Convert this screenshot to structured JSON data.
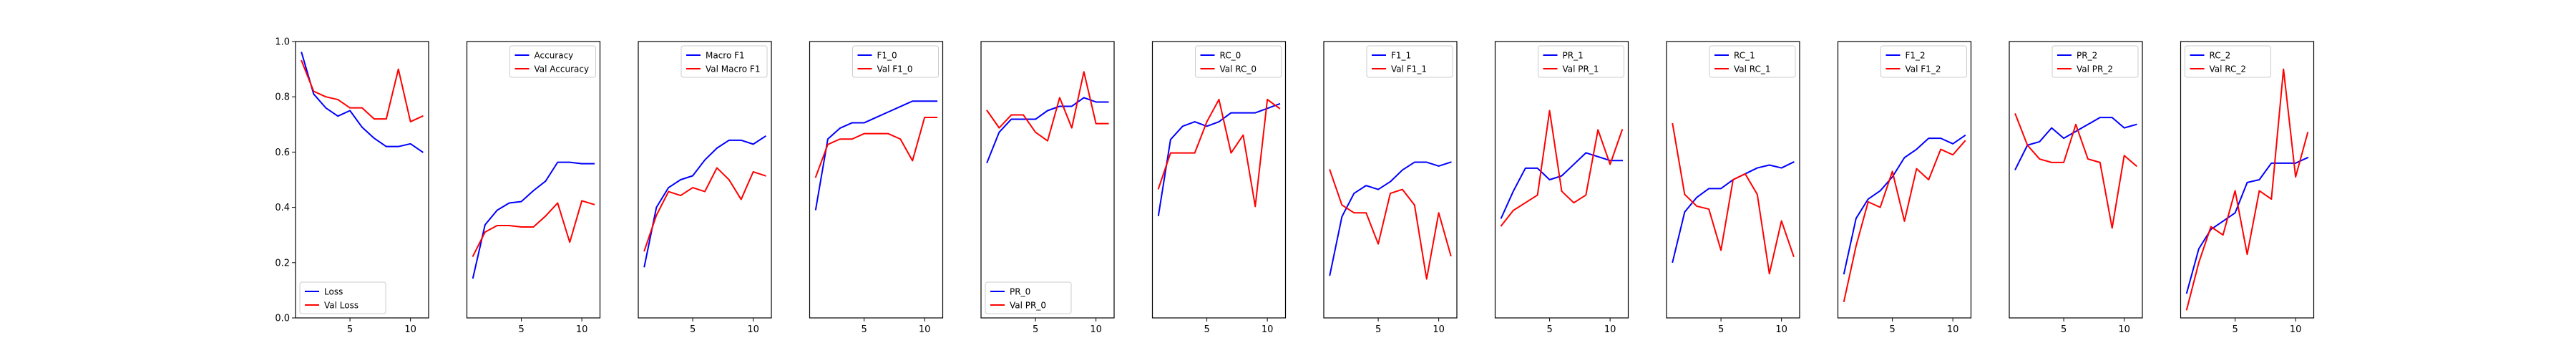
{
  "figure": {
    "colors": {
      "train": "#0000ff",
      "val": "#ff0000",
      "axis": "#000000",
      "background": "#ffffff"
    }
  },
  "chart_data": [
    {
      "type": "line",
      "x": [
        1,
        2,
        3,
        4,
        5,
        6,
        7,
        8,
        9,
        10,
        11
      ],
      "xlim": [
        0.5,
        11.5
      ],
      "ylim": [
        0.0,
        1.0
      ],
      "xticks": [
        5,
        10
      ],
      "yticks": [
        0.0,
        0.2,
        0.4,
        0.6,
        0.8,
        1.0
      ],
      "legend_position": "lower left",
      "series": [
        {
          "name": "Loss",
          "color": "#0000ff",
          "values": [
            0.96,
            0.81,
            0.76,
            0.73,
            0.75,
            0.69,
            0.65,
            0.62,
            0.62,
            0.63,
            0.6
          ]
        },
        {
          "name": "Val Loss",
          "color": "#ff0000",
          "values": [
            0.93,
            0.82,
            0.8,
            0.79,
            0.76,
            0.76,
            0.72,
            0.72,
            0.9,
            0.71,
            0.73
          ]
        }
      ]
    },
    {
      "type": "line",
      "x": [
        1,
        2,
        3,
        4,
        5,
        6,
        7,
        8,
        9,
        10,
        11
      ],
      "xlim": [
        0.5,
        11.5
      ],
      "ylim": [
        0.5,
        0.88
      ],
      "xticks": [
        5,
        10
      ],
      "yticks": [],
      "legend_position": "upper right",
      "series": [
        {
          "name": "Accuracy",
          "color": "#0000ff",
          "values": [
            0.555,
            0.628,
            0.648,
            0.658,
            0.66,
            0.675,
            0.688,
            0.714,
            0.714,
            0.712,
            0.712
          ]
        },
        {
          "name": "Val Accuracy",
          "color": "#ff0000",
          "values": [
            0.585,
            0.618,
            0.627,
            0.627,
            0.625,
            0.625,
            0.64,
            0.658,
            0.604,
            0.661,
            0.656
          ]
        }
      ]
    },
    {
      "type": "line",
      "x": [
        1,
        2,
        3,
        4,
        5,
        6,
        7,
        8,
        9,
        10,
        11
      ],
      "xlim": [
        0.5,
        11.5
      ],
      "ylim": [
        0.25,
        0.95
      ],
      "xticks": [
        5,
        10
      ],
      "yticks": [],
      "legend_position": "upper right",
      "series": [
        {
          "name": "Macro F1",
          "color": "#0000ff",
          "values": [
            0.38,
            0.53,
            0.58,
            0.6,
            0.61,
            0.65,
            0.68,
            0.7,
            0.7,
            0.69,
            0.71
          ]
        },
        {
          "name": "Val Macro F1",
          "color": "#ff0000",
          "values": [
            0.42,
            0.51,
            0.57,
            0.56,
            0.58,
            0.57,
            0.63,
            0.6,
            0.55,
            0.62,
            0.61
          ]
        }
      ]
    },
    {
      "type": "line",
      "x": [
        1,
        2,
        3,
        4,
        5,
        6,
        7,
        8,
        9,
        10,
        11
      ],
      "xlim": [
        0.5,
        11.5
      ],
      "ylim": [
        0.44,
        0.95
      ],
      "xticks": [
        5,
        10
      ],
      "yticks": [],
      "legend_position": "upper right",
      "series": [
        {
          "name": "F1_0",
          "color": "#0000ff",
          "values": [
            0.64,
            0.77,
            0.79,
            0.8,
            0.8,
            0.81,
            0.82,
            0.83,
            0.84,
            0.84,
            0.84
          ]
        },
        {
          "name": "Val F1_0",
          "color": "#ff0000",
          "values": [
            0.7,
            0.76,
            0.77,
            0.77,
            0.78,
            0.78,
            0.78,
            0.77,
            0.73,
            0.81,
            0.81
          ]
        }
      ]
    },
    {
      "type": "line",
      "x": [
        1,
        2,
        3,
        4,
        5,
        6,
        7,
        8,
        9,
        10,
        11
      ],
      "xlim": [
        0.5,
        11.5
      ],
      "ylim": [
        0.36,
        1.0
      ],
      "xticks": [
        5,
        10
      ],
      "yticks": [],
      "legend_position": "lower left",
      "series": [
        {
          "name": "PR_0",
          "color": "#0000ff",
          "values": [
            0.72,
            0.79,
            0.82,
            0.82,
            0.82,
            0.84,
            0.85,
            0.85,
            0.87,
            0.86,
            0.86
          ]
        },
        {
          "name": "Val PR_0",
          "color": "#ff0000",
          "values": [
            0.84,
            0.8,
            0.83,
            0.83,
            0.79,
            0.77,
            0.87,
            0.8,
            0.93,
            0.81,
            0.81
          ]
        }
      ]
    },
    {
      "type": "line",
      "x": [
        1,
        2,
        3,
        4,
        5,
        6,
        7,
        8,
        9,
        10,
        11
      ],
      "xlim": [
        0.5,
        11.5
      ],
      "ylim": [
        0.34,
        0.96
      ],
      "xticks": [
        5,
        10
      ],
      "yticks": [],
      "legend_position": "upper right",
      "series": [
        {
          "name": "RC_0",
          "color": "#0000ff",
          "values": [
            0.57,
            0.74,
            0.77,
            0.78,
            0.77,
            0.78,
            0.8,
            0.8,
            0.8,
            0.81,
            0.82
          ]
        },
        {
          "name": "Val RC_0",
          "color": "#ff0000",
          "values": [
            0.63,
            0.71,
            0.71,
            0.71,
            0.78,
            0.83,
            0.71,
            0.75,
            0.59,
            0.83,
            0.81
          ]
        }
      ]
    },
    {
      "type": "line",
      "x": [
        1,
        2,
        3,
        4,
        5,
        6,
        7,
        8,
        9,
        10,
        11
      ],
      "xlim": [
        0.5,
        11.5
      ],
      "ylim": [
        0.23,
        0.94
      ],
      "xticks": [
        5,
        10
      ],
      "yticks": [],
      "legend_position": "upper right",
      "series": [
        {
          "name": "F1_1",
          "color": "#0000ff",
          "values": [
            0.34,
            0.49,
            0.55,
            0.57,
            0.56,
            0.58,
            0.61,
            0.63,
            0.63,
            0.62,
            0.63
          ]
        },
        {
          "name": "Val F1_1",
          "color": "#ff0000",
          "values": [
            0.61,
            0.52,
            0.5,
            0.5,
            0.42,
            0.55,
            0.56,
            0.52,
            0.33,
            0.5,
            0.39
          ]
        }
      ]
    },
    {
      "type": "line",
      "x": [
        1,
        2,
        3,
        4,
        5,
        6,
        7,
        8,
        9,
        10,
        11
      ],
      "xlim": [
        0.5,
        11.5
      ],
      "ylim": [
        0.28,
        1.0
      ],
      "xticks": [
        5,
        10
      ],
      "yticks": [],
      "legend_position": "upper right",
      "series": [
        {
          "name": "PR_1",
          "color": "#0000ff",
          "values": [
            0.54,
            0.61,
            0.67,
            0.67,
            0.64,
            0.65,
            0.68,
            0.71,
            0.7,
            0.69,
            0.69
          ]
        },
        {
          "name": "Val PR_1",
          "color": "#ff0000",
          "values": [
            0.52,
            0.56,
            0.58,
            0.6,
            0.82,
            0.61,
            0.58,
            0.6,
            0.77,
            0.68,
            0.77
          ]
        }
      ]
    },
    {
      "type": "line",
      "x": [
        1,
        2,
        3,
        4,
        5,
        6,
        7,
        8,
        9,
        10,
        11
      ],
      "xlim": [
        0.5,
        11.5
      ],
      "ylim": [
        0.06,
        1.0
      ],
      "xticks": [
        5,
        10
      ],
      "yticks": [],
      "legend_position": "upper right",
      "series": [
        {
          "name": "RC_1",
          "color": "#0000ff",
          "values": [
            0.25,
            0.42,
            0.47,
            0.5,
            0.5,
            0.53,
            0.55,
            0.57,
            0.58,
            0.57,
            0.59
          ]
        },
        {
          "name": "Val RC_1",
          "color": "#ff0000",
          "values": [
            0.72,
            0.48,
            0.44,
            0.43,
            0.29,
            0.53,
            0.55,
            0.48,
            0.21,
            0.39,
            0.27
          ]
        }
      ]
    },
    {
      "type": "line",
      "x": [
        1,
        2,
        3,
        4,
        5,
        6,
        7,
        8,
        9,
        10,
        11
      ],
      "xlim": [
        0.5,
        11.5
      ],
      "ylim": [
        0.0,
        1.0
      ],
      "xticks": [
        5,
        10
      ],
      "yticks": [],
      "legend_position": "upper right",
      "series": [
        {
          "name": "F1_2",
          "color": "#0000ff",
          "values": [
            0.16,
            0.36,
            0.43,
            0.46,
            0.51,
            0.58,
            0.61,
            0.65,
            0.65,
            0.63,
            0.66
          ]
        },
        {
          "name": "Val F1_2",
          "color": "#ff0000",
          "values": [
            0.06,
            0.26,
            0.42,
            0.4,
            0.53,
            0.35,
            0.54,
            0.5,
            0.61,
            0.59,
            0.64
          ]
        }
      ]
    },
    {
      "type": "line",
      "x": [
        1,
        2,
        3,
        4,
        5,
        6,
        7,
        8,
        9,
        10,
        11
      ],
      "xlim": [
        0.5,
        11.5
      ],
      "ylim": [
        0.2,
        1.0
      ],
      "xticks": [
        5,
        10
      ],
      "yticks": [],
      "legend_position": "upper right",
      "series": [
        {
          "name": "PR_2",
          "color": "#0000ff",
          "values": [
            0.63,
            0.7,
            0.71,
            0.75,
            0.72,
            0.74,
            0.76,
            0.78,
            0.78,
            0.75,
            0.76
          ]
        },
        {
          "name": "Val PR_2",
          "color": "#ff0000",
          "values": [
            0.79,
            0.7,
            0.66,
            0.65,
            0.65,
            0.76,
            0.66,
            0.65,
            0.46,
            0.67,
            0.64
          ]
        }
      ]
    },
    {
      "type": "line",
      "x": [
        1,
        2,
        3,
        4,
        5,
        6,
        7,
        8,
        9,
        10,
        11
      ],
      "xlim": [
        0.5,
        11.5
      ],
      "ylim": [
        0.0,
        1.0
      ],
      "xticks": [
        5,
        10
      ],
      "yticks": [],
      "legend_position": "upper left",
      "series": [
        {
          "name": "RC_2",
          "color": "#0000ff",
          "values": [
            0.09,
            0.25,
            0.32,
            0.35,
            0.38,
            0.49,
            0.5,
            0.56,
            0.56,
            0.56,
            0.58
          ]
        },
        {
          "name": "Val RC_2",
          "color": "#ff0000",
          "values": [
            0.03,
            0.2,
            0.33,
            0.3,
            0.46,
            0.23,
            0.46,
            0.43,
            0.9,
            0.51,
            0.67
          ]
        }
      ]
    }
  ]
}
